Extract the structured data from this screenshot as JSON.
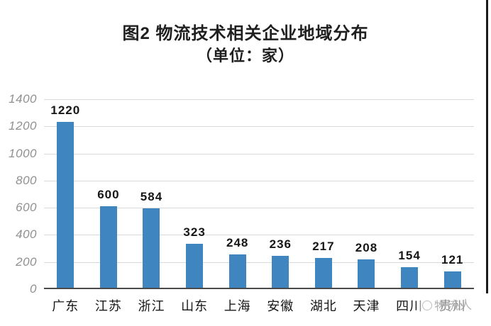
{
  "chart_data": {
    "type": "bar",
    "title": "图2 物流技术相关企业地域分布",
    "subtitle": "（单位：家）",
    "categories": [
      "广东",
      "江苏",
      "浙江",
      "山东",
      "上海",
      "安徽",
      "湖北",
      "天津",
      "四川",
      "贵州"
    ],
    "values": [
      1220,
      600,
      584,
      323,
      248,
      236,
      217,
      208,
      154,
      121
    ],
    "xlabel": "",
    "ylabel": "",
    "ylim": [
      0,
      1400
    ],
    "yticks": [
      0,
      200,
      400,
      600,
      800,
      1000,
      1200,
      1400
    ],
    "grid": true,
    "legend": "none",
    "value_labels": true,
    "bar_color": "#3f86c1"
  },
  "colors": {
    "bar": "#3f86c1",
    "gridline": "#d9d9d9",
    "axis_baseline": "#4a4a4a",
    "ytick_text": "#909090",
    "label_text": "#161616",
    "watermark_text": "#a6a6a6"
  },
  "watermark": {
    "logo": "circle-logo",
    "text": "物流人"
  }
}
